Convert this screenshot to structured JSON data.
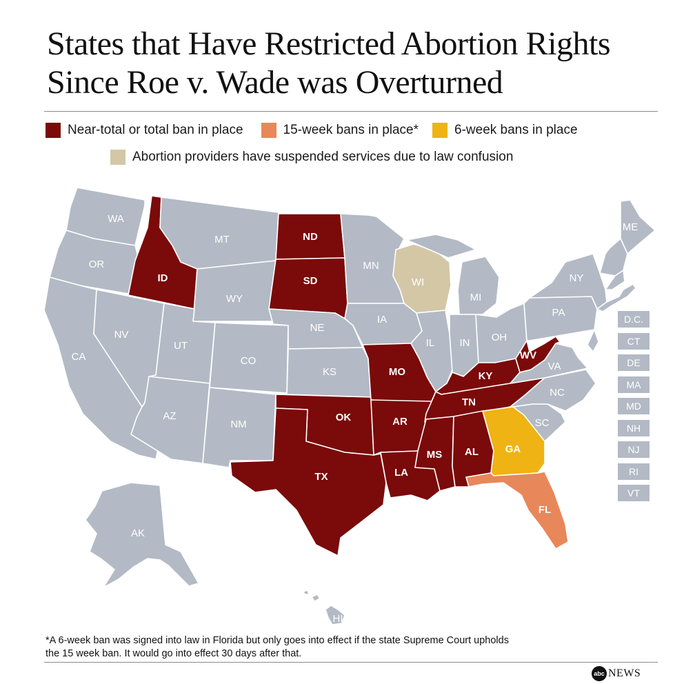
{
  "title_line1": "States that Have Restricted Abortion Rights",
  "title_line2": "Since Roe v. Wade was Overturned",
  "legend": {
    "total_ban": {
      "label": "Near-total or total  ban in place",
      "color": "#7b0a0a"
    },
    "fifteen_week": {
      "label": "15-week bans in place*",
      "color": "#e8875a"
    },
    "six_week": {
      "label": "6-week bans in place",
      "color": "#efb314"
    },
    "suspended": {
      "label": "Abortion providers have suspended services due to law confusion",
      "color": "#d3c7a6"
    },
    "no_restriction_color": "#b3bac5"
  },
  "states": {
    "WA": "WA",
    "OR": "OR",
    "CA": "CA",
    "NV": "NV",
    "ID": "ID",
    "MT": "MT",
    "WY": "WY",
    "UT": "UT",
    "AZ": "AZ",
    "CO": "CO",
    "NM": "NM",
    "ND": "ND",
    "SD": "SD",
    "NE": "NE",
    "KS": "KS",
    "OK": "OK",
    "TX": "TX",
    "MN": "MN",
    "IA": "IA",
    "MO": "MO",
    "AR": "AR",
    "LA": "LA",
    "WI": "WI",
    "IL": "IL",
    "MI": "MI",
    "IN": "IN",
    "OH": "OH",
    "KY": "KY",
    "TN": "TN",
    "MS": "MS",
    "AL": "AL",
    "GA": "GA",
    "FL": "FL",
    "SC": "SC",
    "NC": "NC",
    "VA": "VA",
    "WV": "WV",
    "PA": "PA",
    "NY": "NY",
    "ME": "ME",
    "AK": "AK",
    "HI": "HI"
  },
  "small_states": [
    "D.C.",
    "CT",
    "DE",
    "MA",
    "MD",
    "NH",
    "NJ",
    "RI",
    "VT"
  ],
  "footnote_line1": "*A 6-week ban was signed into law in Florida but only goes into effect if the state Supreme Court upholds",
  "footnote_line2": "the 15 week ban.  It would go into effect 30 days after that.",
  "brand": {
    "logo": "abc",
    "text": "NEWS"
  }
}
